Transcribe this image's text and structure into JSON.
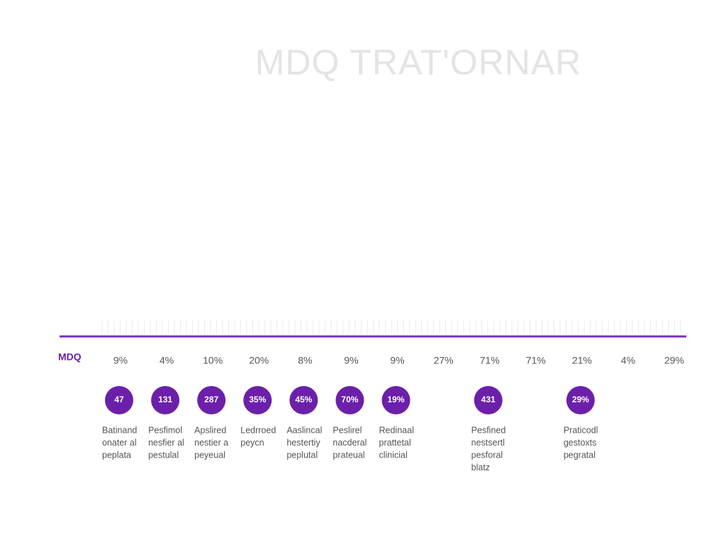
{
  "header": {
    "title": "MDQ TRAT'ORNAR"
  },
  "row_label": "MDQ",
  "columns": [
    {
      "percent": "9%",
      "badge": "47",
      "description": [
        "Batinand",
        "onater al",
        "peplata"
      ]
    },
    {
      "percent": "4%",
      "badge": "131",
      "description": [
        "Pesfimol",
        "nesfier al",
        "pestulal"
      ]
    },
    {
      "percent": "10%",
      "badge": "287",
      "description": [
        "Apslired",
        "nestier a",
        "peyeual"
      ]
    },
    {
      "percent": "20%",
      "badge": "35%",
      "description": [
        "Ledrroed",
        "peycn"
      ]
    },
    {
      "percent": "8%",
      "badge": "45%",
      "description": [
        "Aaslincal",
        "hestertiy",
        "peplutal"
      ]
    },
    {
      "percent": "9%",
      "badge": "70%",
      "description": [
        "Peslirel",
        "nacderal",
        "prateual"
      ]
    },
    {
      "percent": "9%",
      "badge": "19%",
      "description": [
        "Redinaal",
        "prattetal",
        "clinicial"
      ]
    },
    {
      "percent": "27%"
    },
    {
      "percent": "71%",
      "badge": "431",
      "description": [
        "Pesfined",
        "nestsertl",
        "pesforal",
        "blatz"
      ]
    },
    {
      "percent": "71%"
    },
    {
      "percent": "21%",
      "badge": "29%",
      "description": [
        "Praticodl",
        "gestoxts",
        "pegratal"
      ]
    },
    {
      "percent": "4%"
    },
    {
      "percent": "29%"
    }
  ]
}
